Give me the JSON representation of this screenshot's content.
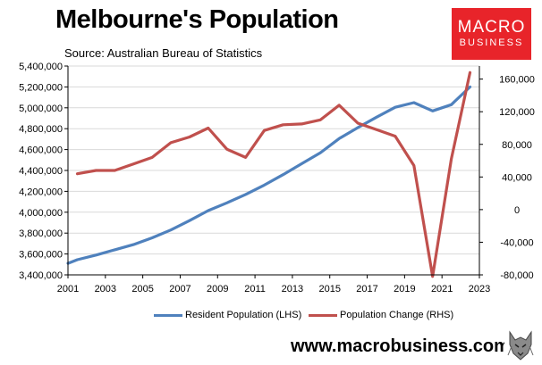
{
  "header": {
    "title": "Melbourne's Population",
    "subtitle": "Source: Australian Bureau of Statistics"
  },
  "logo": {
    "line1": "MACRO",
    "line2": "BUSINESS",
    "bg_color": "#e8242a"
  },
  "footer": {
    "website": "www.macrobusiness.com.au",
    "emblem": "wolf-emblem"
  },
  "chart_data": {
    "type": "line",
    "title": "Melbourne's Population",
    "subtitle": "Source: Australian Bureau of Statistics",
    "x_ticks": [
      "2001",
      "2003",
      "2005",
      "2007",
      "2009",
      "2011",
      "2013",
      "2015",
      "2017",
      "2019",
      "2021",
      "2023"
    ],
    "xlim": [
      2001,
      2023
    ],
    "y_left": {
      "ticks": [
        "3,400,000",
        "3,600,000",
        "3,800,000",
        "4,000,000",
        "4,200,000",
        "4,400,000",
        "4,600,000",
        "4,800,000",
        "5,000,000",
        "5,200,000",
        "5,400,000"
      ],
      "ylim": [
        3400000,
        5400000
      ]
    },
    "y_right": {
      "ticks": [
        "160,000",
        "120,000",
        "80,000",
        "40,000",
        "0",
        "-40,000",
        "-80,000"
      ],
      "ylim": [
        -80000,
        176000
      ]
    },
    "grid": true,
    "legend_position": "bottom",
    "series": [
      {
        "name": "Resident Population (LHS)",
        "axis": "left",
        "color": "#4f81bd",
        "points": [
          [
            2001,
            3510000
          ],
          [
            2001.5,
            3545000
          ],
          [
            2002.5,
            3590000
          ],
          [
            2003.5,
            3640000
          ],
          [
            2004.5,
            3690000
          ],
          [
            2005.5,
            3755000
          ],
          [
            2006.5,
            3830000
          ],
          [
            2007.5,
            3920000
          ],
          [
            2008.5,
            4015000
          ],
          [
            2009.5,
            4090000
          ],
          [
            2010.5,
            4170000
          ],
          [
            2011.5,
            4260000
          ],
          [
            2012.5,
            4360000
          ],
          [
            2013.5,
            4465000
          ],
          [
            2014.5,
            4570000
          ],
          [
            2015.5,
            4705000
          ],
          [
            2016.5,
            4810000
          ],
          [
            2017.5,
            4910000
          ],
          [
            2018.5,
            5005000
          ],
          [
            2019.5,
            5050000
          ],
          [
            2020.5,
            4970000
          ],
          [
            2021.5,
            5030000
          ],
          [
            2022.5,
            5200000
          ]
        ]
      },
      {
        "name": "Population Change (RHS)",
        "axis": "right",
        "color": "#c0504d",
        "points": [
          [
            2001.5,
            44000
          ],
          [
            2002.5,
            48000
          ],
          [
            2003.5,
            48000
          ],
          [
            2004.5,
            56000
          ],
          [
            2005.5,
            64000
          ],
          [
            2006.5,
            82000
          ],
          [
            2007.5,
            89000
          ],
          [
            2008.5,
            100000
          ],
          [
            2009.5,
            74000
          ],
          [
            2010.5,
            64000
          ],
          [
            2011.5,
            97000
          ],
          [
            2012.5,
            104000
          ],
          [
            2013.5,
            105000
          ],
          [
            2014.5,
            110000
          ],
          [
            2015.5,
            128000
          ],
          [
            2016.5,
            106000
          ],
          [
            2017.5,
            98000
          ],
          [
            2018.5,
            90000
          ],
          [
            2019.5,
            54000
          ],
          [
            2020.5,
            -82000
          ],
          [
            2021.5,
            62000
          ],
          [
            2022.5,
            168000
          ]
        ]
      }
    ]
  }
}
